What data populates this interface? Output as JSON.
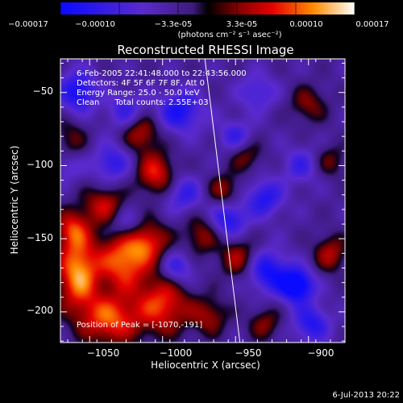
{
  "colorbar": {
    "ticks": [
      "-0.00017",
      "-0.00010",
      "-3.3e-05",
      "3.3e-05",
      "0.00010",
      "0.00017"
    ],
    "units": "(photons cm⁻² s⁻¹ asec⁻²)"
  },
  "info": {
    "time": "6-Feb-2005 22:41:48.000 to 22:43:56.000",
    "detectors": "Detectors: 4F 5F 6F 7F 8F, Att 0",
    "energy": "Energy Range: 25.0 - 50.0 keV",
    "clean": "Clean      Total counts: 2.55E+03"
  },
  "peak_text": "Position of Peak = [-1070,-191]",
  "timestamp": "6-Jul-2013 20:22",
  "colors": {
    "axis": "#ffffff",
    "background": "#000000",
    "limb_line": "#ffffff"
  },
  "chart_data": {
    "type": "heatmap",
    "title": "Reconstructed RHESSI Image",
    "xlabel": "Heliocentric X (arcsec)",
    "ylabel": "Heliocentric Y (arcsec)",
    "xlim": [
      -1070,
      -875
    ],
    "ylim": [
      -221,
      -27
    ],
    "xticks": [
      -1050,
      -1000,
      -950,
      -900
    ],
    "yticks": [
      -50,
      -100,
      -150,
      -200
    ],
    "colorscale": "rainbow",
    "zlim": [
      -0.00017,
      0.00017
    ],
    "peak_position": [
      -1070,
      -191
    ],
    "limb_line": {
      "x": [
        -971,
        -947
      ],
      "y": [
        -27,
        -221
      ]
    },
    "blobs": [
      {
        "x": -1058,
        "y": -173,
        "sx": 10,
        "sy": 18,
        "value": 0.00017
      },
      {
        "x": -1027,
        "y": -165,
        "sx": 12,
        "sy": 14,
        "value": 0.00015
      },
      {
        "x": -1036,
        "y": -205,
        "sx": 14,
        "sy": 12,
        "value": 0.00014
      },
      {
        "x": -1000,
        "y": -195,
        "sx": 13,
        "sy": 14,
        "value": 0.00013
      },
      {
        "x": -1010,
        "y": -152,
        "sx": 10,
        "sy": 10,
        "value": 0.00011
      },
      {
        "x": -1062,
        "y": -143,
        "sx": 8,
        "sy": 9,
        "value": 0.0001
      },
      {
        "x": -1040,
        "y": -127,
        "sx": 10,
        "sy": 9,
        "value": 0.0001
      },
      {
        "x": -1005,
        "y": -105,
        "sx": 9,
        "sy": 10,
        "value": 0.00012
      },
      {
        "x": -1015,
        "y": -77,
        "sx": 9,
        "sy": 9,
        "value": 0.0001
      },
      {
        "x": -973,
        "y": -147,
        "sx": 9,
        "sy": 10,
        "value": 8e-05
      },
      {
        "x": -968,
        "y": -203,
        "sx": 9,
        "sy": 9,
        "value": 8e-05
      },
      {
        "x": -948,
        "y": -163,
        "sx": 9,
        "sy": 10,
        "value": 9e-05
      },
      {
        "x": -958,
        "y": -117,
        "sx": 8,
        "sy": 8,
        "value": 8e-05
      },
      {
        "x": -943,
        "y": -93,
        "sx": 8,
        "sy": 8,
        "value": 7e-05
      },
      {
        "x": -930,
        "y": -208,
        "sx": 8,
        "sy": 8,
        "value": 7e-05
      },
      {
        "x": -885,
        "y": -160,
        "sx": 8,
        "sy": 9,
        "value": 9e-05
      },
      {
        "x": -900,
        "y": -58,
        "sx": 9,
        "sy": 9,
        "value": 7e-05
      },
      {
        "x": -885,
        "y": -97,
        "sx": 8,
        "sy": 8,
        "value": 6e-05
      },
      {
        "x": -1063,
        "y": -83,
        "sx": 8,
        "sy": 12,
        "value": 6e-05
      },
      {
        "x": -1058,
        "y": -50,
        "sx": 9,
        "sy": 10,
        "value": -0.00012
      },
      {
        "x": -1025,
        "y": -63,
        "sx": 9,
        "sy": 9,
        "value": -8e-05
      },
      {
        "x": -988,
        "y": -63,
        "sx": 11,
        "sy": 10,
        "value": -0.00011
      },
      {
        "x": -935,
        "y": -50,
        "sx": 9,
        "sy": 9,
        "value": -7e-05
      },
      {
        "x": -1035,
        "y": -98,
        "sx": 9,
        "sy": 9,
        "value": -9e-05
      },
      {
        "x": -955,
        "y": -137,
        "sx": 9,
        "sy": 9,
        "value": -0.00011
      },
      {
        "x": -930,
        "y": -122,
        "sx": 9,
        "sy": 9,
        "value": -0.0001
      },
      {
        "x": -950,
        "y": -80,
        "sx": 8,
        "sy": 8,
        "value": -8e-05
      },
      {
        "x": -928,
        "y": -172,
        "sx": 10,
        "sy": 10,
        "value": -0.00012
      },
      {
        "x": -908,
        "y": -182,
        "sx": 8,
        "sy": 8,
        "value": -0.00017
      },
      {
        "x": -898,
        "y": -208,
        "sx": 9,
        "sy": 9,
        "value": -0.0001
      },
      {
        "x": -985,
        "y": -120,
        "sx": 9,
        "sy": 9,
        "value": -8e-05
      },
      {
        "x": -990,
        "y": -170,
        "sx": 8,
        "sy": 8,
        "value": -9e-05
      },
      {
        "x": -1025,
        "y": -140,
        "sx": 8,
        "sy": 8,
        "value": -7e-05
      },
      {
        "x": -1065,
        "y": -100,
        "sx": 8,
        "sy": 8,
        "value": -6e-05
      },
      {
        "x": -905,
        "y": -100,
        "sx": 9,
        "sy": 9,
        "value": -7e-05
      }
    ]
  }
}
